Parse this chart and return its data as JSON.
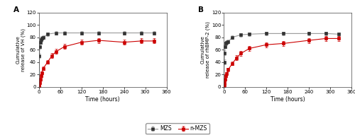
{
  "panel_A": {
    "title": "A",
    "ylabel": "Cumulative\nrelease of VH (%)",
    "xlabel": "Time (hours)",
    "MZS_x": [
      0,
      1,
      2,
      4,
      6,
      8,
      12,
      24,
      48,
      72,
      120,
      168,
      240,
      288,
      324
    ],
    "MZS_y": [
      0,
      50,
      65,
      72,
      76,
      79,
      80,
      85,
      87,
      87,
      87,
      87,
      87,
      87,
      87
    ],
    "MZS_err": [
      0,
      4,
      4,
      3,
      3,
      3,
      3,
      3,
      3,
      3,
      3,
      3,
      3,
      3,
      3
    ],
    "nMZS_x": [
      0,
      1,
      2,
      4,
      6,
      8,
      12,
      24,
      36,
      48,
      72,
      120,
      168,
      240,
      288,
      324
    ],
    "nMZS_y": [
      0,
      3,
      7,
      12,
      18,
      23,
      30,
      40,
      50,
      57,
      65,
      72,
      75,
      72,
      74,
      74
    ],
    "nMZS_err": [
      0,
      2,
      2,
      2,
      2,
      2,
      3,
      3,
      4,
      4,
      4,
      4,
      4,
      4,
      4,
      4
    ],
    "ylim": [
      0,
      120
    ],
    "yticks": [
      0,
      20,
      40,
      60,
      80,
      100,
      120
    ],
    "xlim": [
      0,
      360
    ],
    "xticks": [
      0,
      60,
      120,
      180,
      240,
      300,
      360
    ]
  },
  "panel_B": {
    "title": "B",
    "ylabel": "Cumulative\nrelease of rhBMP-2 (%)",
    "xlabel": "Time (hours)",
    "MZS_x": [
      0,
      1,
      2,
      4,
      6,
      8,
      12,
      24,
      48,
      72,
      120,
      168,
      240,
      288,
      324
    ],
    "MZS_y": [
      0,
      40,
      55,
      65,
      70,
      72,
      73,
      80,
      84,
      85,
      86,
      86,
      86,
      86,
      85
    ],
    "MZS_err": [
      0,
      4,
      4,
      3,
      3,
      3,
      3,
      3,
      3,
      3,
      3,
      3,
      3,
      3,
      3
    ],
    "nMZS_x": [
      0,
      1,
      2,
      4,
      6,
      8,
      12,
      24,
      36,
      48,
      72,
      120,
      168,
      240,
      288,
      324
    ],
    "nMZS_y": [
      0,
      3,
      7,
      12,
      18,
      22,
      28,
      38,
      47,
      54,
      62,
      68,
      70,
      75,
      78,
      78
    ],
    "nMZS_err": [
      0,
      2,
      2,
      2,
      2,
      2,
      3,
      3,
      4,
      4,
      4,
      4,
      4,
      4,
      4,
      4
    ],
    "ylim": [
      0,
      120
    ],
    "yticks": [
      0,
      20,
      40,
      60,
      80,
      100,
      120
    ],
    "xlim": [
      0,
      360
    ],
    "xticks": [
      0,
      60,
      120,
      180,
      240,
      300,
      360
    ]
  },
  "MZS_color": "#999999",
  "MZS_marker_color": "#333333",
  "nMZS_color": "#cc0000",
  "MZS_marker": "s",
  "nMZS_marker": "s",
  "legend_labels": [
    "MZS",
    "n-MZS"
  ],
  "linewidth": 0.8,
  "markersize": 2.5,
  "capsize": 1.5,
  "elinewidth": 0.6
}
